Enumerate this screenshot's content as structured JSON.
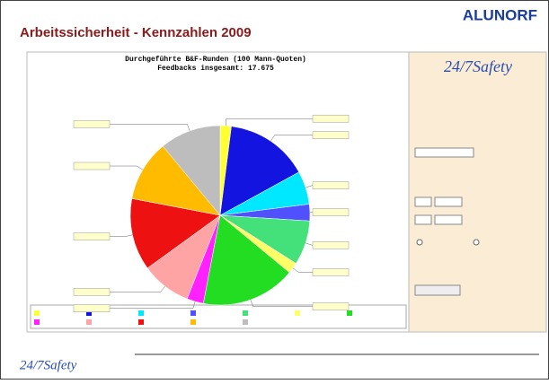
{
  "header": {
    "title": "Arbeitssicherheit - Kennzahlen 2009",
    "logo": "ALUNORF"
  },
  "panel": {
    "logo": "24/7Safety"
  },
  "footer": {
    "logo": "24/7Safety"
  },
  "chart_data": {
    "type": "pie",
    "title": "Durchgeführte B&F-Runden (100 Mann-Quoten)",
    "subtitle": "Feedbacks insgesamt: 17.675",
    "values": [
      2,
      15,
      6,
      3,
      8,
      2,
      17,
      3,
      9,
      13,
      11,
      11
    ],
    "colors": [
      "#ffff33",
      "#1414e0",
      "#00e8ff",
      "#5050ff",
      "#44e07a",
      "#ffff66",
      "#22dd22",
      "#ff22ff",
      "#ffa4a4",
      "#ee1111",
      "#ffbb00",
      "#bdbdbd"
    ]
  }
}
